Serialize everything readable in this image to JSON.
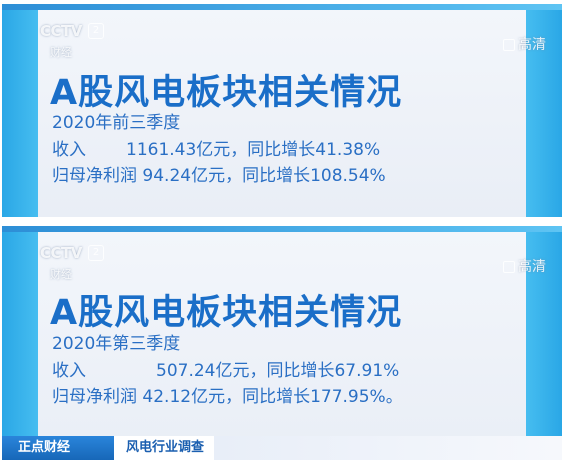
{
  "logo": {
    "channel": "CCTV",
    "number": "2",
    "sub": "财经"
  },
  "hd_label": "高清",
  "cards": [
    {
      "title": "A股风电板块相关情况",
      "period": "2020年前三季度",
      "revenue_label": "收入",
      "revenue_value": "1161.43亿元，同比增长41.38%",
      "profit_label": "归母净利润",
      "profit_value": "94.24亿元，同比增长108.54%"
    },
    {
      "title": "A股风电板块相关情况",
      "period": "2020年第三季度",
      "revenue_label": "收入",
      "revenue_value": "507.24亿元，同比增长67.91%",
      "profit_label": "归母净利润",
      "profit_value": "42.12亿元，同比增长177.95%。"
    }
  ],
  "lower_third": {
    "program": "正点财经",
    "topic": "风电行业调查"
  },
  "colors": {
    "accent": "#1a6ec8",
    "side": "#2aa7e6",
    "bar": "#1767b8"
  }
}
